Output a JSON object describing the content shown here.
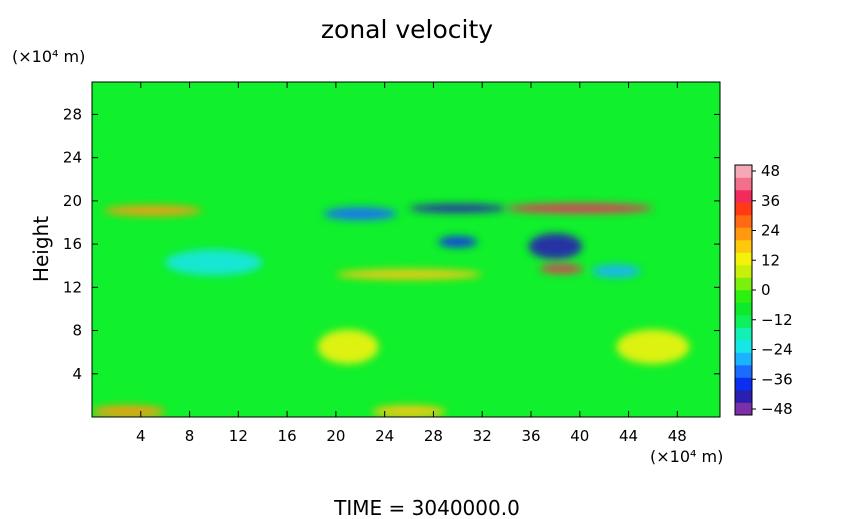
{
  "chart_data": {
    "type": "heatmap",
    "title": "zonal velocity",
    "ylabel": "Height",
    "y_units": "(×10⁴ m)",
    "x_units": "(×10⁴ m)",
    "xlim": [
      0,
      51.5
    ],
    "ylim": [
      0,
      31
    ],
    "xticks": [
      "4",
      "8",
      "12",
      "16",
      "20",
      "24",
      "28",
      "32",
      "36",
      "40",
      "44",
      "48"
    ],
    "yticks": [
      "4",
      "8",
      "12",
      "16",
      "20",
      "24",
      "28"
    ],
    "xtick_values": [
      4,
      8,
      12,
      16,
      20,
      24,
      28,
      32,
      36,
      40,
      44,
      48
    ],
    "ytick_values": [
      4,
      8,
      12,
      16,
      20,
      24,
      28
    ],
    "colorbar": {
      "labels": [
        "48",
        "36",
        "24",
        "12",
        "0",
        "−12",
        "−24",
        "−36",
        "−48"
      ],
      "min": -48,
      "max": 48,
      "bands": [
        "#7b2fa8",
        "#2a1fb0",
        "#0a2ff0",
        "#1a6cff",
        "#19b3ff",
        "#16e6e6",
        "#12f0b4",
        "#10f05a",
        "#0dea2c",
        "#2cf00e",
        "#7af00c",
        "#c8f00a",
        "#f5f20a",
        "#ffc80c",
        "#ff9a0e",
        "#ff6a12",
        "#ff3a14",
        "#f32a5c",
        "#f2708a",
        "#f4a8b8"
      ]
    },
    "features": [
      {
        "x": 30,
        "y": 19.3,
        "value": -42,
        "rx": 4,
        "ry": 0.4
      },
      {
        "x": 22,
        "y": 18.8,
        "value": -32,
        "rx": 3,
        "ry": 0.6
      },
      {
        "x": 38,
        "y": 15.8,
        "value": -42,
        "rx": 2.2,
        "ry": 1.2
      },
      {
        "x": 30,
        "y": 16.2,
        "value": -36,
        "rx": 1.6,
        "ry": 0.5
      },
      {
        "x": 43,
        "y": 13.5,
        "value": -28,
        "rx": 2,
        "ry": 0.6
      },
      {
        "x": 10,
        "y": 14.3,
        "value": -22,
        "rx": 4,
        "ry": 1.2
      },
      {
        "x": 38.5,
        "y": 13.7,
        "value": 38,
        "rx": 1.8,
        "ry": 0.4
      },
      {
        "x": 40,
        "y": 19.3,
        "value": 34,
        "rx": 6,
        "ry": 0.45
      },
      {
        "x": 5,
        "y": 19.1,
        "value": 22,
        "rx": 4,
        "ry": 0.5
      },
      {
        "x": 26,
        "y": 13.2,
        "value": 16,
        "rx": 6,
        "ry": 0.5
      },
      {
        "x": 3,
        "y": 0.5,
        "value": 20,
        "rx": 3,
        "ry": 0.6
      },
      {
        "x": 26,
        "y": 0.5,
        "value": 18,
        "rx": 3,
        "ry": 0.6
      },
      {
        "x": 21,
        "y": 6.5,
        "value": 10,
        "rx": 2.5,
        "ry": 1.6
      },
      {
        "x": 46,
        "y": 6.5,
        "value": 10,
        "rx": 3,
        "ry": 1.6
      }
    ]
  },
  "footer": "TIME  =  3040000.0"
}
